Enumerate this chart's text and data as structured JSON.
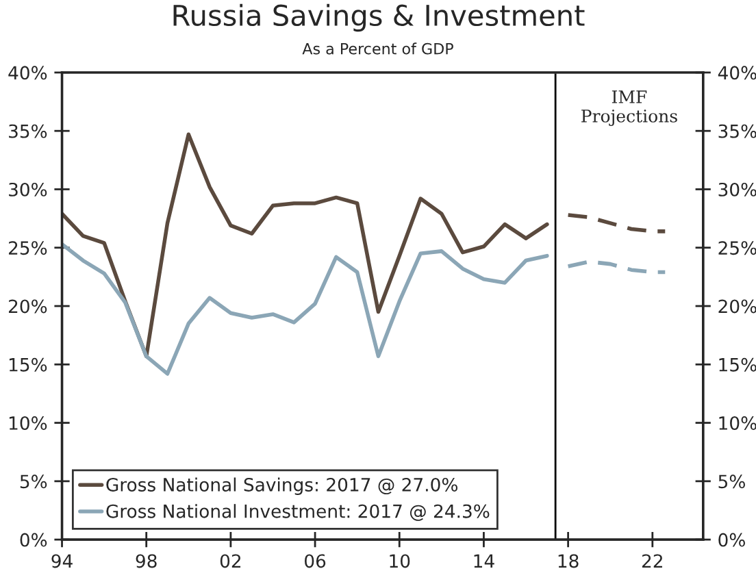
{
  "chart_data": {
    "type": "line",
    "title": "Russia Savings & Investment",
    "subtitle": "As a Percent of GDP",
    "series": [
      {
        "name": "Gross National Savings: 2017 @ 27.0%",
        "color": "#5b4a3e",
        "line_style": "solid",
        "x": [
          1994,
          1995,
          1996,
          1997,
          1998,
          1999,
          2000,
          2001,
          2002,
          2003,
          2004,
          2005,
          2006,
          2007,
          2008,
          2009,
          2010,
          2011,
          2012,
          2013,
          2014,
          2015,
          2016,
          2017
        ],
        "values": [
          27.9,
          26.0,
          25.4,
          20.4,
          15.7,
          27.1,
          34.7,
          30.2,
          26.9,
          26.2,
          28.6,
          28.8,
          28.8,
          29.3,
          28.8,
          19.5,
          24.3,
          29.2,
          27.9,
          24.6,
          25.1,
          27.0,
          25.8,
          27.0
        ]
      },
      {
        "name": "Gross National Investment: 2017 @ 24.3%",
        "color": "#8ba6b6",
        "line_style": "solid",
        "x": [
          1994,
          1995,
          1996,
          1997,
          1998,
          1999,
          2000,
          2001,
          2002,
          2003,
          2004,
          2005,
          2006,
          2007,
          2008,
          2009,
          2010,
          2011,
          2012,
          2013,
          2014,
          2015,
          2016,
          2017
        ],
        "values": [
          25.3,
          23.9,
          22.8,
          20.3,
          15.7,
          14.2,
          18.5,
          20.7,
          19.4,
          19.0,
          19.3,
          18.6,
          20.2,
          24.2,
          22.9,
          15.7,
          20.4,
          24.5,
          24.7,
          23.2,
          22.3,
          22.0,
          23.9,
          24.3
        ]
      },
      {
        "color": "#5b4a3e",
        "line_style": "dashed",
        "x": [
          2018,
          2019,
          2020,
          2021,
          2022,
          2022.6
        ],
        "values": [
          27.8,
          27.6,
          27.1,
          26.6,
          26.4,
          26.4
        ]
      },
      {
        "color": "#8ba6b6",
        "line_style": "dashed",
        "x": [
          2018,
          2019,
          2020,
          2021,
          2022,
          2022.6
        ],
        "values": [
          23.4,
          23.8,
          23.6,
          23.1,
          22.9,
          22.9
        ]
      }
    ],
    "xlim": [
      1994,
      2024.4
    ],
    "xticks": [
      {
        "value": 1994,
        "label": "94"
      },
      {
        "value": 1998,
        "label": "98"
      },
      {
        "value": 2002,
        "label": "02"
      },
      {
        "value": 2006,
        "label": "06"
      },
      {
        "value": 2010,
        "label": "10"
      },
      {
        "value": 2014,
        "label": "14"
      },
      {
        "value": 2018,
        "label": "18"
      },
      {
        "value": 2022,
        "label": "22"
      }
    ],
    "ylim": [
      0,
      40
    ],
    "yticks": [
      {
        "value": 0,
        "label": "0%"
      },
      {
        "value": 5,
        "label": "5%"
      },
      {
        "value": 10,
        "label": "10%"
      },
      {
        "value": 15,
        "label": "15%"
      },
      {
        "value": 20,
        "label": "20%"
      },
      {
        "value": 25,
        "label": "25%"
      },
      {
        "value": 30,
        "label": "30%"
      },
      {
        "value": 35,
        "label": "35%"
      },
      {
        "value": 40,
        "label": "40%"
      }
    ],
    "y2lim": [
      0,
      40
    ],
    "y2ticks": [
      {
        "value": 0,
        "label": "0%"
      },
      {
        "value": 5,
        "label": "5%"
      },
      {
        "value": 10,
        "label": "10%"
      },
      {
        "value": 15,
        "label": "15%"
      },
      {
        "value": 20,
        "label": "20%"
      },
      {
        "value": 25,
        "label": "25%"
      },
      {
        "value": 30,
        "label": "30%"
      },
      {
        "value": 35,
        "label": "35%"
      },
      {
        "value": 40,
        "label": "40%"
      }
    ],
    "ref_lines": [
      {
        "axis": "x",
        "value": 2017.4,
        "label": "IMF\nProjections",
        "color": "#000000"
      }
    ],
    "grid": false,
    "legend": "bottom left"
  }
}
